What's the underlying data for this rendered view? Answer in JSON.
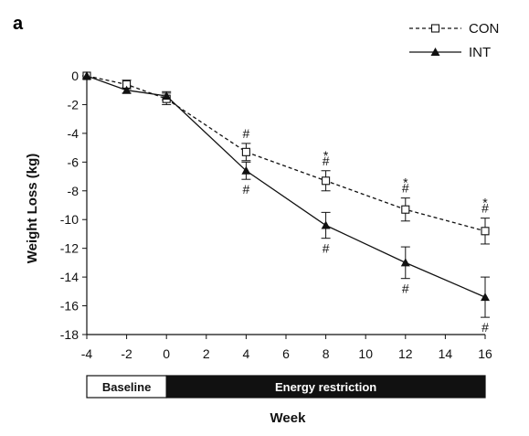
{
  "panel_label": "a",
  "chart_data": {
    "type": "line",
    "title": "",
    "xlabel": "Week",
    "ylabel": "Weight Loss (kg)",
    "x": [
      -4,
      -2,
      0,
      4,
      8,
      12,
      16
    ],
    "xticks": [
      -4,
      -2,
      0,
      2,
      4,
      6,
      8,
      10,
      12,
      14,
      16
    ],
    "yticks": [
      0,
      -2,
      -4,
      -6,
      -8,
      -10,
      -12,
      -14,
      -16,
      -18
    ],
    "xlim": [
      -4,
      16
    ],
    "ylim": [
      -18,
      0
    ],
    "grid": false,
    "legend_position": "top-right",
    "series": [
      {
        "name": "CON",
        "style": "dashed",
        "marker": "open-square",
        "color": "#111111",
        "values": [
          0,
          -0.6,
          -1.6,
          -5.3,
          -7.3,
          -9.3,
          -10.8
        ],
        "error": [
          0,
          0.3,
          0.4,
          0.6,
          0.7,
          0.8,
          0.9
        ]
      },
      {
        "name": "INT",
        "style": "solid",
        "marker": "filled-triangle",
        "color": "#111111",
        "values": [
          0,
          -1.0,
          -1.4,
          -6.6,
          -10.4,
          -13.0,
          -15.4
        ],
        "error": [
          0,
          0.2,
          0.3,
          0.6,
          0.9,
          1.1,
          1.4
        ]
      }
    ],
    "annotations": [
      {
        "x": 4,
        "series": "CON",
        "position": "above",
        "symbols": [
          "#"
        ]
      },
      {
        "x": 4,
        "series": "INT",
        "position": "below",
        "symbols": [
          "#"
        ]
      },
      {
        "x": 8,
        "series": "CON",
        "position": "above",
        "symbols": [
          "*",
          "#"
        ]
      },
      {
        "x": 8,
        "series": "INT",
        "position": "below",
        "symbols": [
          "#"
        ]
      },
      {
        "x": 12,
        "series": "CON",
        "position": "above",
        "symbols": [
          "*",
          "#"
        ]
      },
      {
        "x": 12,
        "series": "INT",
        "position": "below",
        "symbols": [
          "#"
        ]
      },
      {
        "x": 16,
        "series": "CON",
        "position": "above",
        "symbols": [
          "*",
          "#"
        ]
      },
      {
        "x": 16,
        "series": "INT",
        "position": "below",
        "symbols": [
          "#"
        ]
      }
    ],
    "phases": [
      {
        "label": "Baseline",
        "start": -4,
        "end": 0,
        "fill": "#ffffff",
        "text_color": "#111111"
      },
      {
        "label": "Energy restriction",
        "start": 0,
        "end": 16,
        "fill": "#111111",
        "text_color": "#ffffff"
      }
    ]
  }
}
